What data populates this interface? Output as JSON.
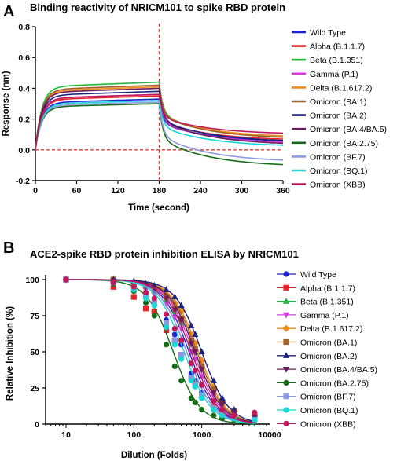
{
  "panels": {
    "a_label": "A",
    "b_label": "B"
  },
  "chart_data": [
    {
      "type": "line",
      "title": "Binding reactivity of NRICM101 to spike RBD protein",
      "xlabel": "Time (second)",
      "ylabel": "Response (nm)",
      "xlim": [
        0,
        360
      ],
      "ylim": [
        -0.2,
        0.8
      ],
      "x_ticks": [
        0,
        60,
        120,
        180,
        240,
        300,
        360
      ],
      "y_ticks": [
        -0.2,
        0.0,
        0.2,
        0.4,
        0.6,
        0.8
      ],
      "x_tick_labels": [
        "0",
        "60",
        "120",
        "180",
        "240",
        "300",
        "360"
      ],
      "y_tick_labels": [
        "-0.2",
        "0.0",
        "0.2",
        "0.4",
        "0.6",
        "0.8"
      ],
      "reference_lines": [
        {
          "axis": "x",
          "value": 180,
          "color": "#e53935",
          "style": "dashed"
        },
        {
          "axis": "y",
          "value": 0,
          "color": "#e53935",
          "style": "dashed"
        }
      ],
      "legend_position": "right",
      "series": [
        {
          "name": "Wild Type",
          "color": "#1f1fd6",
          "plateau": 0.33,
          "end_value": 0.05
        },
        {
          "name": "Alpha (B.1.1.7)",
          "color": "#e8232a",
          "plateau": 0.35,
          "end_value": 0.06
        },
        {
          "name": "Beta (B.1.351)",
          "color": "#1fb83a",
          "plateau": 0.44,
          "end_value": 0.07
        },
        {
          "name": "Gamma (P.1)",
          "color": "#d13de0",
          "plateau": 0.36,
          "end_value": 0.04
        },
        {
          "name": "Delta (B.1.617.2)",
          "color": "#f28a1c",
          "plateau": 0.41,
          "end_value": 0.08
        },
        {
          "name": "Omicron (BA.1)",
          "color": "#a0612a",
          "plateau": 0.42,
          "end_value": 0.07
        },
        {
          "name": "Omicron (BA.2)",
          "color": "#1a237e",
          "plateau": 0.38,
          "end_value": 0.05
        },
        {
          "name": "Omicron (BA.4/BA.5)",
          "color": "#6a1b5a",
          "plateau": 0.4,
          "end_value": 0.03
        },
        {
          "name": "Omicron (BA.2.75)",
          "color": "#146b16",
          "plateau": 0.3,
          "end_value": -0.11
        },
        {
          "name": "Omicron (BF.7)",
          "color": "#8c9ae6",
          "plateau": 0.31,
          "end_value": -0.08
        },
        {
          "name": "Omicron (BQ.1)",
          "color": "#17d6d6",
          "plateau": 0.32,
          "end_value": 0.02
        },
        {
          "name": "Omicron (XBB)",
          "color": "#c2185b",
          "plateau": 0.36,
          "end_value": 0.1
        }
      ]
    },
    {
      "type": "scatter",
      "title": "ACE2-spike RBD protein inhibition ELISA by NRICM101",
      "xlabel": "Dilution (Folds)",
      "ylabel": "Relative Inhibition (%)",
      "x_scale": "log",
      "xlim": [
        5,
        10000
      ],
      "ylim": [
        0,
        100
      ],
      "x_ticks": [
        10,
        100,
        1000,
        10000
      ],
      "y_ticks": [
        0,
        25,
        50,
        75,
        100
      ],
      "x_tick_labels": [
        "10",
        "100",
        "1000",
        "10000"
      ],
      "y_tick_labels": [
        "0",
        "25",
        "50",
        "75",
        "100"
      ],
      "x": [
        10,
        50,
        100,
        150,
        200,
        300,
        400,
        500,
        700,
        800,
        1000,
        1500,
        2000,
        3000,
        6000
      ],
      "legend_position": "right",
      "series": [
        {
          "name": "Wild Type",
          "color": "#1f1fd6",
          "marker": "circle",
          "ic50": 650,
          "values": [
            100,
            98,
            95,
            90,
            85,
            72,
            62,
            55,
            35,
            30,
            22,
            12,
            8,
            5,
            4
          ]
        },
        {
          "name": "Alpha (B.1.1.7)",
          "color": "#e8232a",
          "marker": "square",
          "ic50": 600,
          "values": [
            100,
            95,
            88,
            80,
            78,
            65,
            58,
            48,
            32,
            28,
            20,
            12,
            8,
            5,
            4
          ]
        },
        {
          "name": "Beta (B.1.351)",
          "color": "#1fb83a",
          "marker": "triangle-up",
          "ic50": 800,
          "values": [
            100,
            99,
            97,
            95,
            92,
            86,
            78,
            70,
            55,
            50,
            38,
            22,
            14,
            8,
            5
          ]
        },
        {
          "name": "Gamma (P.1)",
          "color": "#d13de0",
          "marker": "triangle-down",
          "ic50": 750,
          "values": [
            100,
            99,
            96,
            93,
            90,
            83,
            74,
            66,
            50,
            45,
            33,
            20,
            12,
            7,
            5
          ]
        },
        {
          "name": "Delta (B.1.617.2)",
          "color": "#f28a1c",
          "marker": "diamond",
          "ic50": 900,
          "values": [
            100,
            99,
            98,
            96,
            94,
            90,
            84,
            78,
            62,
            56,
            44,
            26,
            16,
            9,
            6
          ]
        },
        {
          "name": "Omicron (BA.1)",
          "color": "#a0612a",
          "marker": "square",
          "ic50": 850,
          "values": [
            100,
            100,
            98,
            96,
            93,
            88,
            80,
            73,
            58,
            52,
            40,
            24,
            15,
            9,
            6
          ]
        },
        {
          "name": "Omicron (BA.2)",
          "color": "#1a237e",
          "marker": "triangle-up",
          "ic50": 1000,
          "values": [
            100,
            100,
            99,
            97,
            96,
            93,
            88,
            82,
            68,
            62,
            50,
            30,
            18,
            10,
            6
          ]
        },
        {
          "name": "Omicron (BA.4/BA.5)",
          "color": "#6a1b5a",
          "marker": "triangle-down",
          "ic50": 800,
          "values": [
            100,
            99,
            97,
            95,
            92,
            87,
            79,
            72,
            56,
            50,
            38,
            22,
            14,
            8,
            5
          ]
        },
        {
          "name": "Omicron (BA.2.75)",
          "color": "#146b16",
          "marker": "circle",
          "ic50": 380,
          "values": [
            100,
            97,
            92,
            84,
            75,
            55,
            40,
            30,
            18,
            15,
            10,
            6,
            4,
            3,
            2
          ]
        },
        {
          "name": "Omicron (BF.7)",
          "color": "#8c9ae6",
          "marker": "square",
          "ic50": 600,
          "values": [
            100,
            98,
            94,
            89,
            84,
            70,
            58,
            48,
            32,
            27,
            20,
            11,
            7,
            4,
            3
          ]
        },
        {
          "name": "Omicron (BQ.1)",
          "color": "#17d6d6",
          "marker": "circle",
          "ic50": 550,
          "values": [
            100,
            98,
            93,
            87,
            82,
            67,
            55,
            45,
            30,
            26,
            18,
            10,
            6,
            4,
            3
          ]
        },
        {
          "name": "Omicron (XBB)",
          "color": "#c2185b",
          "marker": "circle",
          "ic50": 700,
          "values": [
            100,
            98,
            95,
            91,
            87,
            76,
            66,
            58,
            42,
            37,
            27,
            16,
            10,
            6,
            8
          ]
        }
      ]
    }
  ]
}
